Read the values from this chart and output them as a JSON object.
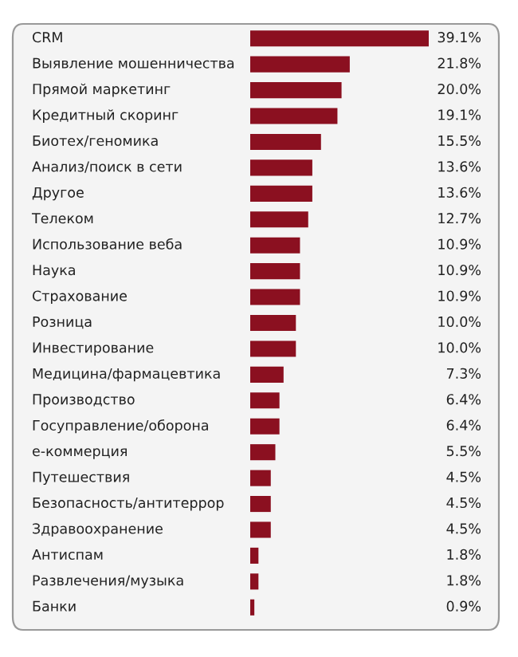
{
  "chart_data": {
    "type": "bar",
    "orientation": "horizontal",
    "categories": [
      "CRM",
      "Выявление мошенничества",
      "Прямой маркетинг",
      "Кредитный скоринг",
      "Биотех/геномика",
      "Анализ/поиск в сети",
      "Другое",
      "Телеком",
      "Использование веба",
      "Наука",
      "Страхование",
      "Розница",
      "Инвестирование",
      "Медицина/фармацевтика",
      "Производство",
      "Госуправление/оборона",
      "е-коммерция",
      "Путешествия",
      "Безопасность/антитеррор",
      "Здравоохранение",
      "Антиспам",
      "Развлечения/музыка",
      "Банки"
    ],
    "values": [
      39.1,
      21.8,
      20.0,
      19.1,
      15.5,
      13.6,
      13.6,
      12.7,
      10.9,
      10.9,
      10.9,
      10.0,
      10.0,
      7.3,
      6.4,
      6.4,
      5.5,
      4.5,
      4.5,
      4.5,
      1.8,
      1.8,
      0.9
    ],
    "value_labels": [
      "39.1%",
      "21.8%",
      "20.0%",
      "19.1%",
      "15.5%",
      "13.6%",
      "13.6%",
      "12.7%",
      "10.9%",
      "10.9%",
      "10.9%",
      "10.0%",
      "10.0%",
      "7.3%",
      "6.4%",
      "6.4%",
      "5.5%",
      "4.5%",
      "4.5%",
      "4.5%",
      "1.8%",
      "1.8%",
      "0.9%"
    ],
    "color": "#8b1020"
  }
}
